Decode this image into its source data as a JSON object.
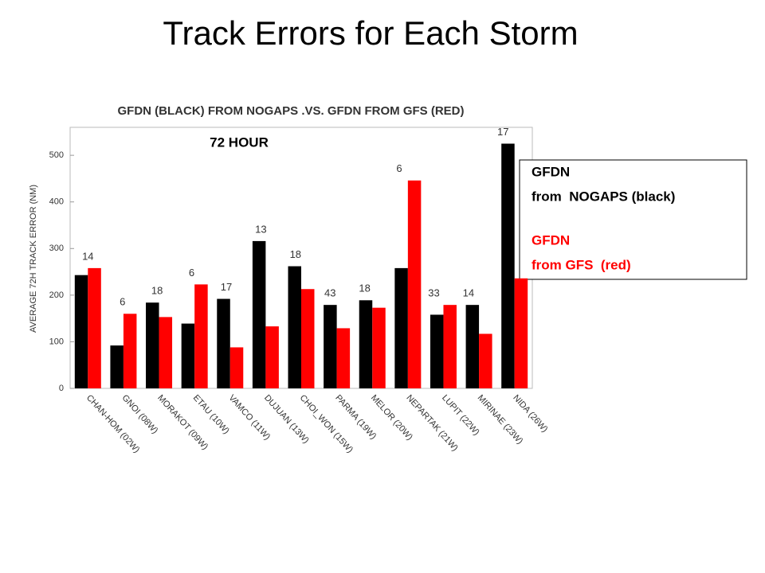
{
  "page_title": "Track Errors for Each Storm",
  "chart_data": {
    "type": "bar",
    "title": "GFDN (BLACK)  FROM NOGAPS .VS. GFDN FROM GFS (RED)",
    "y_label": "AVERAGE 72H TRACK ERROR (NM)",
    "annotation": "72 HOUR",
    "categories": [
      "CHAN-HOM (02W)",
      "GNOI (08W)",
      "MORAKOT (09W)",
      "ETAU (10W)",
      "VAMCO (11W)",
      "DUJUAN (13W)",
      "CHOI_WON (15W)",
      "PARMA (19W)",
      "MELOR (20W)",
      "NEPARTAK (21W)",
      "LUPIT (22W)",
      "MIRINAE (23W)",
      "NIDA (26W)"
    ],
    "counts": [
      14,
      6,
      18,
      6,
      17,
      13,
      18,
      43,
      18,
      6,
      33,
      14,
      17
    ],
    "series": [
      {
        "group": "GFDN",
        "name": "from  NOGAPS (black)",
        "color": "#000000",
        "values": [
          243,
          92,
          184,
          139,
          192,
          316,
          262,
          179,
          189,
          258,
          158,
          179,
          525
        ]
      },
      {
        "group": "GFDN",
        "name": "from GFS  (red)",
        "color": "#ff0000",
        "values": [
          258,
          160,
          153,
          223,
          88,
          133,
          213,
          129,
          173,
          446,
          179,
          117,
          236
        ]
      }
    ],
    "ylim": [
      0,
      560
    ],
    "yticks": [
      0,
      100,
      200,
      300,
      400,
      500
    ]
  }
}
